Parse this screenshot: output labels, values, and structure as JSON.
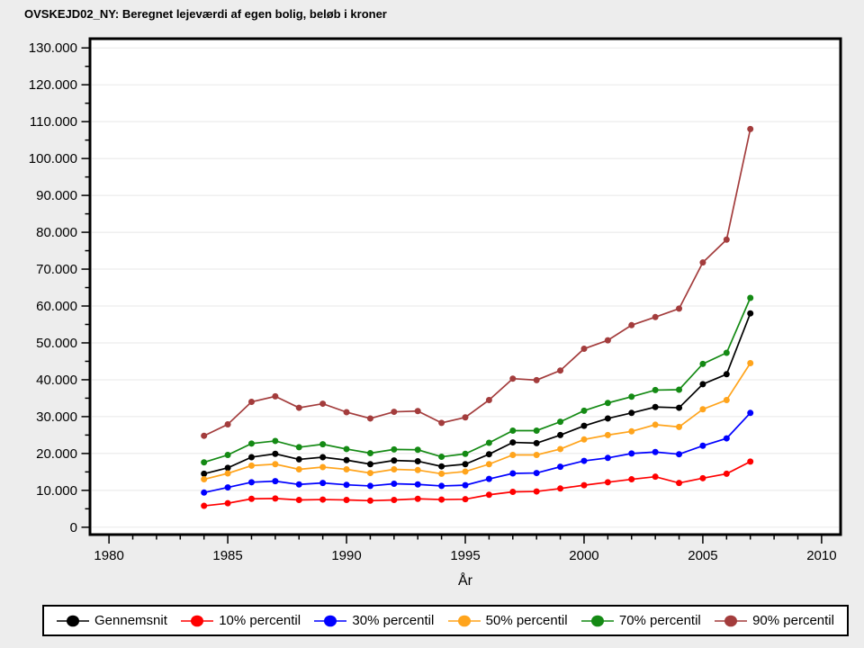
{
  "figure": {
    "title": "OVSKEJD02_NY: Beregnet lejeværdi af egen bolig, beløb i kroner",
    "background_color": "#ededed",
    "plot_background_color": "#ffffff",
    "gridline_color": "#e8e8e8",
    "border_color": "#000000"
  },
  "chart_data": {
    "type": "line",
    "title": "OVSKEJD02_NY: Beregnet lejeværdi af egen bolig, beløb i kroner",
    "xlabel": "År",
    "ylabel": "",
    "grid": "horizontal-major-only",
    "legend_position": "bottom",
    "xlim": [
      1979.2,
      2010.8
    ],
    "ylim": [
      -2000,
      132500
    ],
    "x_major_ticks": [
      1980,
      1985,
      1990,
      1995,
      2000,
      2005,
      2010
    ],
    "x_tick_labels": [
      "1980",
      "1985",
      "1990",
      "1995",
      "2000",
      "2005",
      "2010"
    ],
    "x_minor_tick_step": 1,
    "y_major_ticks": [
      0,
      10000,
      20000,
      30000,
      40000,
      50000,
      60000,
      70000,
      80000,
      90000,
      100000,
      110000,
      120000,
      130000
    ],
    "y_tick_labels": [
      "0",
      "10.000",
      "20.000",
      "30.000",
      "40.000",
      "50.000",
      "60.000",
      "70.000",
      "80.000",
      "90.000",
      "100.000",
      "110.000",
      "120.000",
      "130.000"
    ],
    "y_minor_tick_step": 5000,
    "x": [
      1984,
      1985,
      1986,
      1987,
      1988,
      1989,
      1990,
      1991,
      1992,
      1993,
      1994,
      1995,
      1996,
      1997,
      1998,
      1999,
      2000,
      2001,
      2002,
      2003,
      2004,
      2005,
      2006,
      2007
    ],
    "series": [
      {
        "name": "Gennemsnit",
        "color": "#000000",
        "values": [
          14500,
          16100,
          19000,
          19900,
          18400,
          19000,
          18200,
          17100,
          18100,
          17900,
          16500,
          17100,
          19800,
          23000,
          22800,
          25000,
          27500,
          29500,
          31000,
          32600,
          32400,
          38800,
          41500,
          58000
        ]
      },
      {
        "name": "10% percentil",
        "color": "#ff0000",
        "values": [
          5800,
          6500,
          7700,
          7800,
          7400,
          7500,
          7400,
          7200,
          7400,
          7700,
          7500,
          7600,
          8800,
          9600,
          9700,
          10500,
          11400,
          12200,
          13000,
          13700,
          12000,
          13300,
          14500,
          17800
        ]
      },
      {
        "name": "30% percentil",
        "color": "#0000ff",
        "values": [
          9400,
          10800,
          12200,
          12500,
          11600,
          12000,
          11500,
          11200,
          11800,
          11600,
          11200,
          11400,
          13100,
          14600,
          14700,
          16400,
          18000,
          18800,
          20000,
          20400,
          19800,
          22100,
          24100,
          31000
        ]
      },
      {
        "name": "50% percentil",
        "color": "#ffa41c",
        "values": [
          13000,
          14600,
          16700,
          17100,
          15700,
          16300,
          15700,
          14700,
          15700,
          15500,
          14500,
          15100,
          17100,
          19600,
          19600,
          21200,
          23800,
          25000,
          26000,
          27800,
          27200,
          32000,
          34500,
          44500
        ]
      },
      {
        "name": "70% percentil",
        "color": "#148a14",
        "values": [
          17600,
          19600,
          22700,
          23400,
          21700,
          22500,
          21200,
          20100,
          21100,
          21000,
          19100,
          19900,
          22900,
          26200,
          26200,
          28600,
          31600,
          33700,
          35400,
          37200,
          37300,
          44300,
          47300,
          62200
        ]
      },
      {
        "name": "90% percentil",
        "color": "#a33c3c",
        "values": [
          24800,
          27900,
          34000,
          35500,
          32400,
          33500,
          31200,
          29500,
          31300,
          31500,
          28300,
          29800,
          34500,
          40300,
          39900,
          42500,
          48400,
          50700,
          54800,
          57000,
          59300,
          71800,
          78000,
          108000
        ]
      }
    ]
  }
}
